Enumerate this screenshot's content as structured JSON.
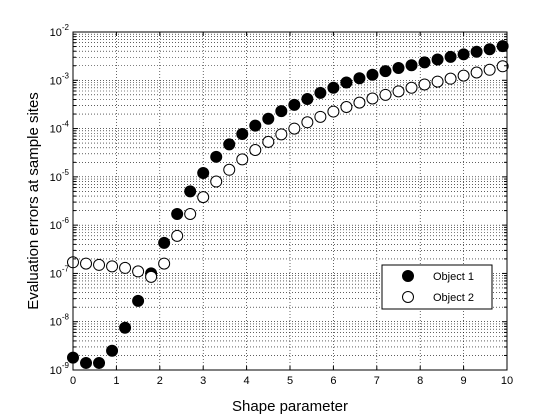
{
  "chart_data": {
    "type": "scatter",
    "xlabel": "Shape parameter",
    "ylabel": "Evaluation errors at sample sites",
    "xlim": [
      0,
      10
    ],
    "ylim": [
      1e-09,
      0.01
    ],
    "yscale": "log",
    "grid": "dotted, with minor log gridlines",
    "legend_placement": "lower-right",
    "x_ticks": [
      "0",
      "1",
      "2",
      "3",
      "4",
      "5",
      "6",
      "7",
      "8",
      "9",
      "10"
    ],
    "y_ticks": [
      {
        "base": "10",
        "exp": "-9"
      },
      {
        "base": "10",
        "exp": "-8"
      },
      {
        "base": "10",
        "exp": "-7"
      },
      {
        "base": "10",
        "exp": "-6"
      },
      {
        "base": "10",
        "exp": "-5"
      },
      {
        "base": "10",
        "exp": "-4"
      },
      {
        "base": "10",
        "exp": "-3"
      },
      {
        "base": "10",
        "exp": "-2"
      }
    ],
    "series": [
      {
        "name": "Object 1",
        "marker": "filled-circle",
        "color": "#000000",
        "x": [
          0.0,
          0.3,
          0.6,
          0.9,
          1.2,
          1.5,
          1.8,
          2.1,
          2.4,
          2.7,
          3.0,
          3.3,
          3.6,
          3.9,
          4.2,
          4.5,
          4.8,
          5.1,
          5.4,
          5.7,
          6.0,
          6.3,
          6.6,
          6.9,
          7.2,
          7.5,
          7.8,
          8.1,
          8.4,
          8.7,
          9.0,
          9.3,
          9.6,
          9.9
        ],
        "y": [
          1.8e-09,
          1.4e-09,
          1.4e-09,
          2.5e-09,
          7.5e-09,
          2.7e-08,
          1e-07,
          4.3e-07,
          1.7e-06,
          5e-06,
          1.2e-05,
          2.6e-05,
          4.7e-05,
          7.7e-05,
          0.000115,
          0.00016,
          0.00023,
          0.00031,
          0.00041,
          0.00055,
          0.0007,
          0.0009,
          0.0011,
          0.0013,
          0.00155,
          0.0018,
          0.00205,
          0.00235,
          0.0027,
          0.00305,
          0.00345,
          0.0039,
          0.0044,
          0.0051
        ]
      },
      {
        "name": "Object 2",
        "marker": "open-circle",
        "color": "#000000",
        "x": [
          0.0,
          0.3,
          0.6,
          0.9,
          1.2,
          1.5,
          1.8,
          2.1,
          2.4,
          2.7,
          3.0,
          3.3,
          3.6,
          3.9,
          4.2,
          4.5,
          4.8,
          5.1,
          5.4,
          5.7,
          6.0,
          6.3,
          6.6,
          6.9,
          7.2,
          7.5,
          7.8,
          8.1,
          8.4,
          8.7,
          9.0,
          9.3,
          9.6,
          9.9
        ],
        "y": [
          1.7e-07,
          1.6e-07,
          1.5e-07,
          1.4e-07,
          1.3e-07,
          1.1e-07,
          8.5e-08,
          1.6e-07,
          6e-07,
          1.7e-06,
          3.8e-06,
          8e-06,
          1.4e-05,
          2.3e-05,
          3.6e-05,
          5.3e-05,
          7.6e-05,
          0.0001,
          0.000135,
          0.000175,
          0.000225,
          0.00028,
          0.000345,
          0.00042,
          0.0005,
          0.00059,
          0.0007,
          0.00082,
          0.00094,
          0.00108,
          0.00125,
          0.00145,
          0.00165,
          0.00195
        ]
      }
    ]
  }
}
